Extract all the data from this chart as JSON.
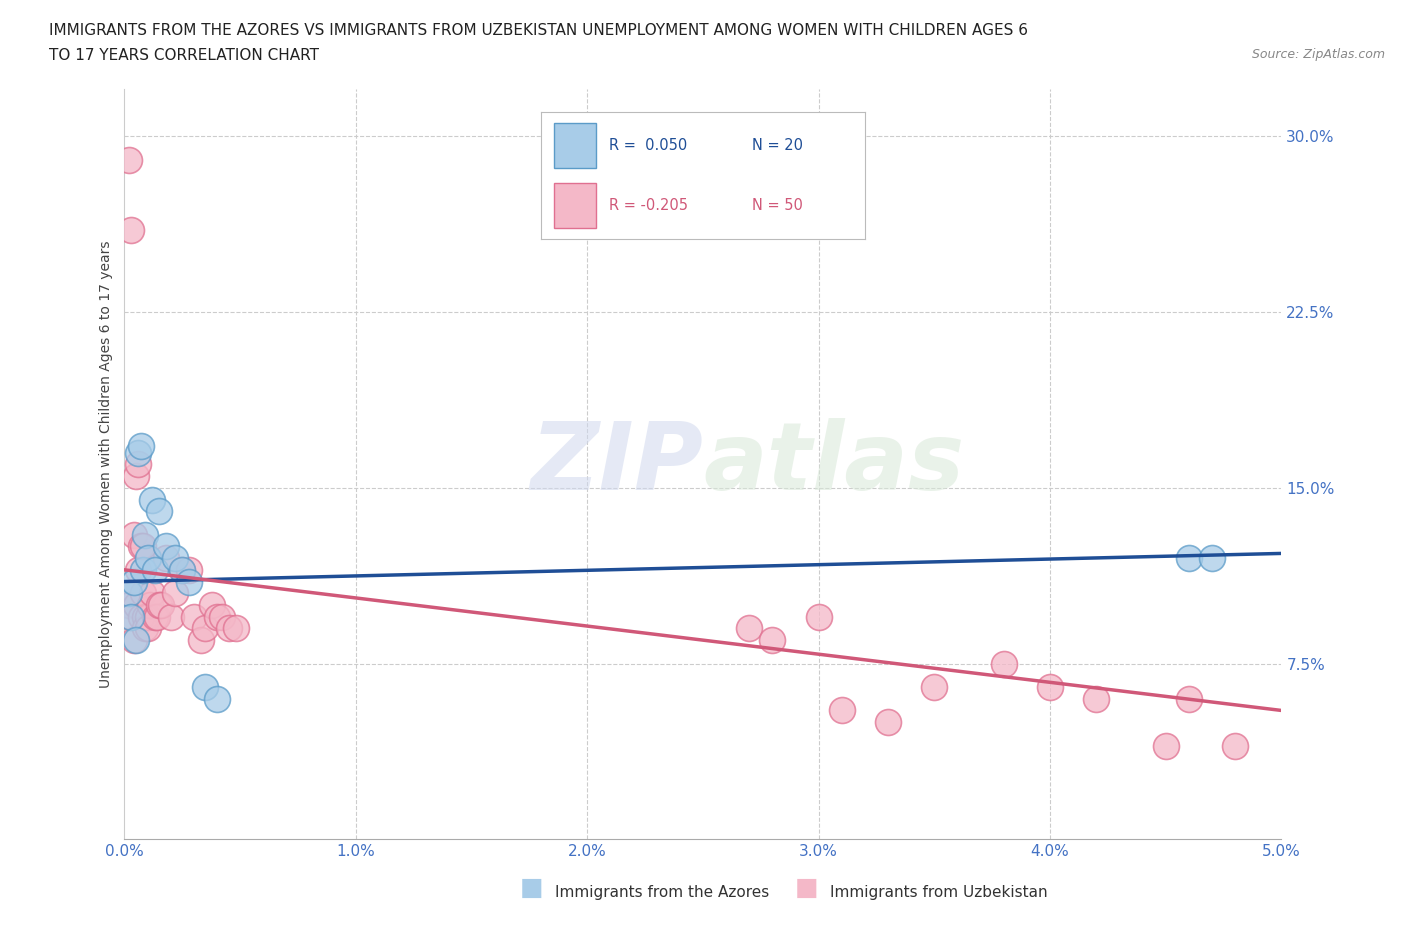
{
  "title_line1": "IMMIGRANTS FROM THE AZORES VS IMMIGRANTS FROM UZBEKISTAN UNEMPLOYMENT AMONG WOMEN WITH CHILDREN AGES 6",
  "title_line2": "TO 17 YEARS CORRELATION CHART",
  "source": "Source: ZipAtlas.com",
  "ylabel": "Unemployment Among Women with Children Ages 6 to 17 years",
  "xlim": [
    0.0,
    0.05
  ],
  "ylim": [
    0.0,
    0.32
  ],
  "xticks": [
    0.0,
    0.01,
    0.02,
    0.03,
    0.04,
    0.05
  ],
  "xtick_labels": [
    "0.0%",
    "1.0%",
    "2.0%",
    "3.0%",
    "4.0%",
    "5.0%"
  ],
  "yticks": [
    0.075,
    0.15,
    0.225,
    0.3
  ],
  "ytick_labels": [
    "7.5%",
    "15.0%",
    "22.5%",
    "30.0%"
  ],
  "azores_color": "#a8cce8",
  "uzbekistan_color": "#f4b8c8",
  "azores_edge": "#5b9bc8",
  "uzbekistan_edge": "#e07090",
  "trend_azores_color": "#1f4e96",
  "trend_uzbekistan_color": "#d05878",
  "background_color": "#ffffff",
  "grid_color": "#cccccc",
  "watermark_zip": "ZIP",
  "watermark_atlas": "atlas",
  "azores_x": [
    0.0002,
    0.0003,
    0.0004,
    0.0005,
    0.0006,
    0.0007,
    0.0008,
    0.0009,
    0.001,
    0.0012,
    0.0013,
    0.0015,
    0.0018,
    0.0022,
    0.0025,
    0.0028,
    0.0035,
    0.004,
    0.046,
    0.047
  ],
  "azores_y": [
    0.105,
    0.095,
    0.11,
    0.085,
    0.165,
    0.168,
    0.115,
    0.13,
    0.12,
    0.145,
    0.115,
    0.14,
    0.125,
    0.12,
    0.115,
    0.11,
    0.065,
    0.06,
    0.12,
    0.12
  ],
  "uzbekistan_x": [
    0.0001,
    0.0002,
    0.0002,
    0.0003,
    0.0003,
    0.0004,
    0.0004,
    0.0005,
    0.0005,
    0.0006,
    0.0006,
    0.0007,
    0.0007,
    0.0008,
    0.0008,
    0.0009,
    0.0009,
    0.001,
    0.001,
    0.0011,
    0.0012,
    0.0013,
    0.0014,
    0.0015,
    0.0016,
    0.0018,
    0.002,
    0.0022,
    0.0025,
    0.0028,
    0.003,
    0.0033,
    0.0035,
    0.0038,
    0.004,
    0.0042,
    0.0045,
    0.0048,
    0.027,
    0.028,
    0.03,
    0.031,
    0.033,
    0.035,
    0.038,
    0.04,
    0.042,
    0.045,
    0.046,
    0.048
  ],
  "uzbekistan_y": [
    0.105,
    0.29,
    0.1,
    0.26,
    0.095,
    0.13,
    0.085,
    0.155,
    0.1,
    0.16,
    0.115,
    0.095,
    0.125,
    0.105,
    0.125,
    0.095,
    0.09,
    0.095,
    0.09,
    0.1,
    0.105,
    0.095,
    0.095,
    0.1,
    0.1,
    0.12,
    0.095,
    0.105,
    0.115,
    0.115,
    0.095,
    0.085,
    0.09,
    0.1,
    0.095,
    0.095,
    0.09,
    0.09,
    0.09,
    0.085,
    0.095,
    0.055,
    0.05,
    0.065,
    0.075,
    0.065,
    0.06,
    0.04,
    0.06,
    0.04
  ],
  "trend_az_x0": 0.0,
  "trend_az_x1": 0.05,
  "trend_az_y0": 0.11,
  "trend_az_y1": 0.122,
  "trend_uz_x0": 0.0,
  "trend_uz_x1": 0.05,
  "trend_uz_y0": 0.115,
  "trend_uz_y1": 0.055
}
